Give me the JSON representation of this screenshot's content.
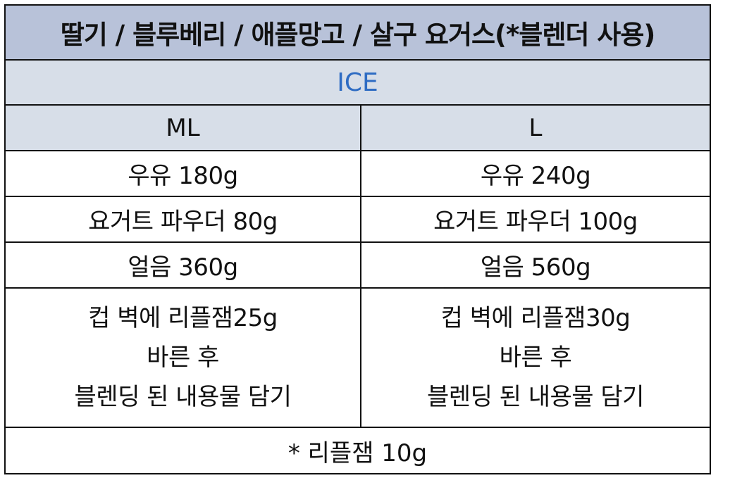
{
  "title": "딸기 / 블루베리 / 애플망고 / 살구 요거스(*블렌더 사용)",
  "section": "ICE",
  "columns": [
    "ML",
    "L"
  ],
  "ingredients": {
    "ml": [
      "우유 180g",
      "요거트 파우더 80g",
      "얼음 360g"
    ],
    "l": [
      "우유 240g",
      "요거트 파우더 100g",
      "얼음 560g"
    ]
  },
  "steps": {
    "ml": [
      "컵 벽에 리플잼25g",
      "바른 후",
      "블렌딩 된 내용물 담기"
    ],
    "l": [
      "컵 벽에 리플잼30g",
      "바른 후",
      "블렌딩 된 내용물 담기"
    ]
  },
  "footnote": "* 리플잼 10g",
  "colors": {
    "title_bg": "#b8c2d9",
    "header_bg": "#d7dee8",
    "ice_text": "#2e6cc3",
    "border": "#111111"
  }
}
